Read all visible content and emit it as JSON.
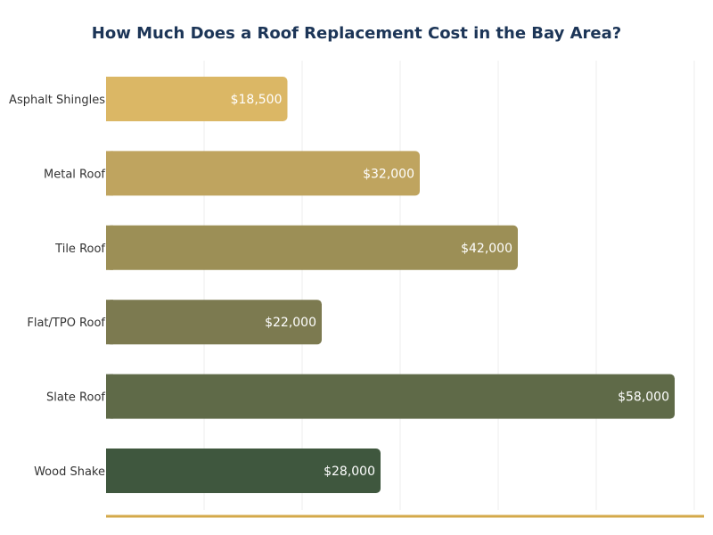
{
  "chart_data": {
    "type": "bar",
    "orientation": "horizontal",
    "title": "How Much Does a Roof Replacement Cost in the Bay Area?",
    "categories": [
      "Asphalt Shingles",
      "Metal Roof",
      "Tile Roof",
      "Flat/TPO Roof",
      "Slate Roof",
      "Wood Shake"
    ],
    "values": [
      18500,
      32000,
      42000,
      22000,
      58000,
      28000
    ],
    "value_labels": [
      "$18,500",
      "$32,000",
      "$42,000",
      "$22,000",
      "$58,000",
      "$28,000"
    ],
    "bar_colors": [
      "#dbb765",
      "#bfa45f",
      "#9c8f56",
      "#7c7a50",
      "#5f6a48",
      "#3f573e"
    ],
    "xlim": [
      0,
      61000
    ],
    "grid": true,
    "legend": "none"
  },
  "colors": {
    "title": "#1c3557",
    "accent_line": "#d4a94a",
    "grid": "#eeeeee"
  }
}
